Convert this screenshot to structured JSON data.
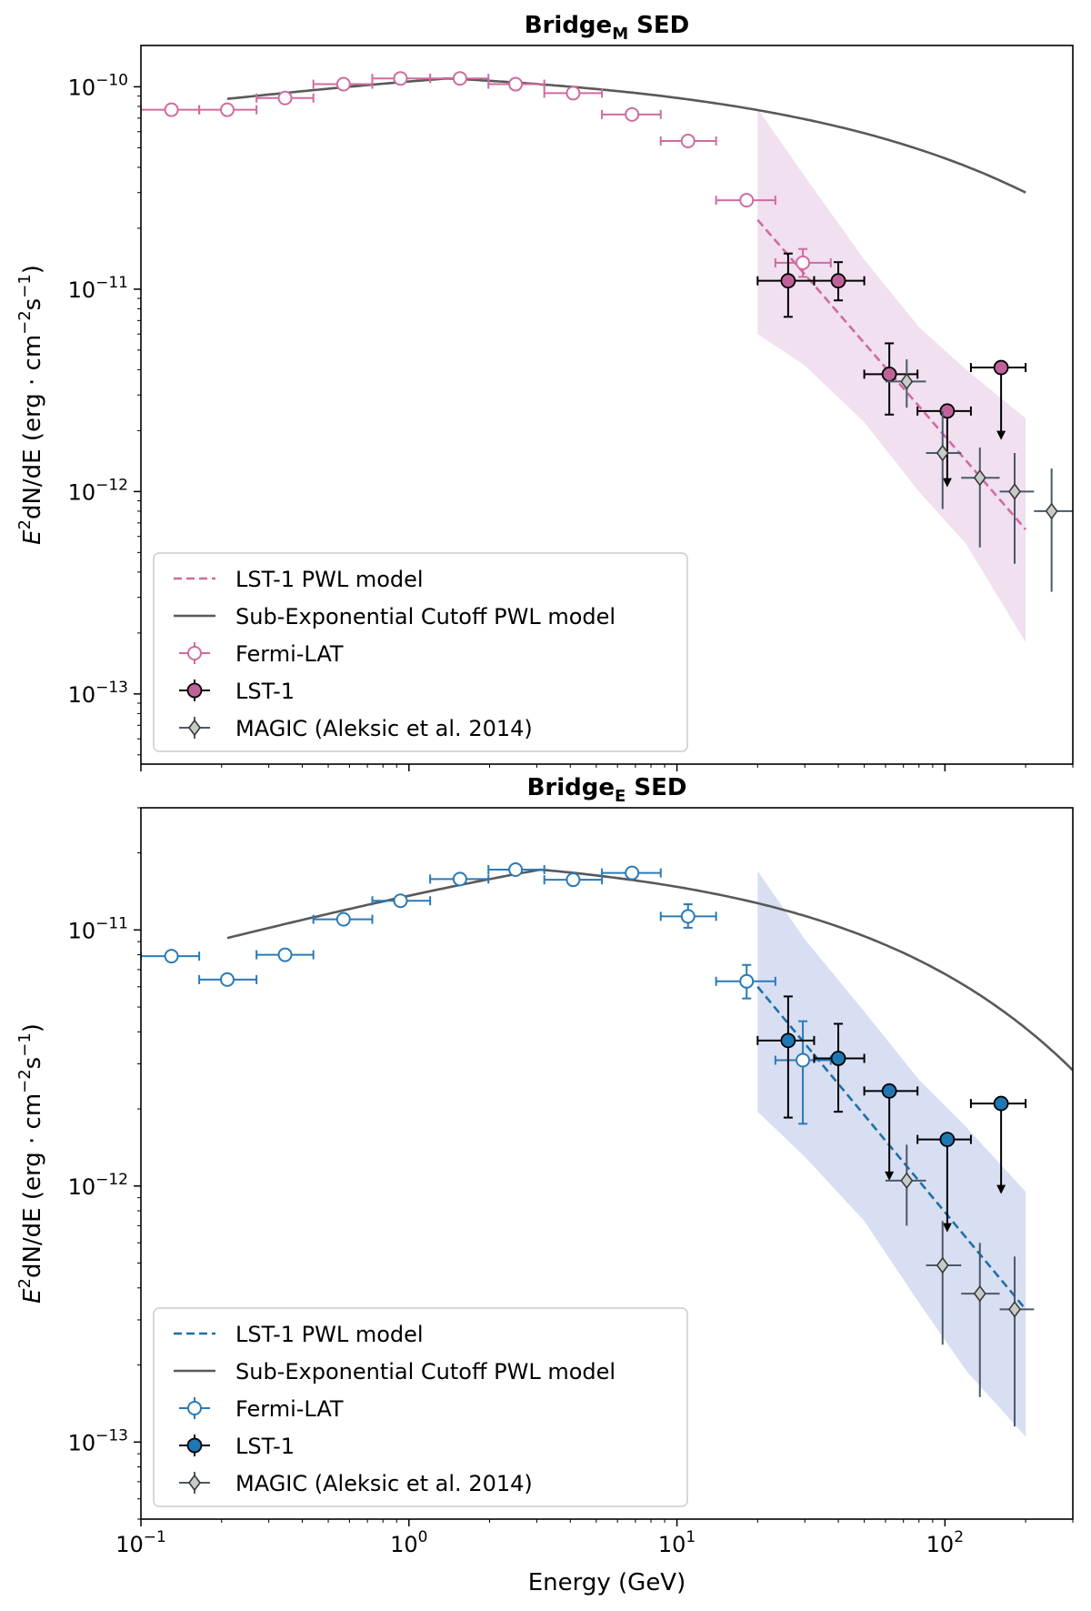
{
  "chart_data": [
    {
      "type": "scatter",
      "title": "Bridge",
      "title_sub": "M",
      "title_suffix": " SED",
      "xscale": "log",
      "yscale": "log",
      "xlim": [
        0.1,
        300
      ],
      "ylim": [
        4.5e-14,
        1.6e-10
      ],
      "xlabel": "",
      "ylabel_parts": [
        "E",
        "2",
        "dN/dE (erg · cm",
        "−2",
        "s",
        "−1",
        ")"
      ],
      "xticks": [
        0.1,
        1,
        10,
        100
      ],
      "x_tick_labels": [
        "",
        "",
        "",
        ""
      ],
      "yticks": [
        1e-13,
        1e-12,
        1e-11,
        1e-10
      ],
      "y_tick_labels": [
        {
          "base": "10",
          "exp": "−13"
        },
        {
          "base": "10",
          "exp": "−12"
        },
        {
          "base": "10",
          "exp": "−11"
        },
        {
          "base": "10",
          "exp": "−10"
        }
      ],
      "colors": {
        "fermi": "#d06b9f",
        "lst_fill": "#c0629a",
        "band": "#f0e0f0",
        "pwl": "#d06b9f",
        "model": "#595959",
        "magic": "#4a5a6a"
      },
      "pwl_band": {
        "x": [
          20,
          30,
          50,
          80,
          120,
          200
        ],
        "lower": [
          6e-12,
          4.2e-12,
          2.2e-12,
          1e-12,
          5.5e-13,
          1.8e-13
        ],
        "upper": [
          7.8e-11,
          3.6e-11,
          1.4e-11,
          6.5e-12,
          4e-12,
          2.3e-12
        ]
      },
      "pwl_line": {
        "x1": 20,
        "y1": 2.2e-11,
        "x2": 200,
        "y2": 6.5e-13
      },
      "model_curve": {
        "A": 1.1e-10,
        "x0": 1.4,
        "k": 0.0115,
        "b": 0.45,
        "xmin": 0.21,
        "xmax": 200
      },
      "series": [
        {
          "name": "Fermi-LAT",
          "kind": "fermi",
          "points": [
            {
              "x": 0.13,
              "xl": 0.1,
              "xh": 0.165,
              "y": 7.7e-11
            },
            {
              "x": 0.21,
              "xl": 0.165,
              "xh": 0.27,
              "y": 7.7e-11
            },
            {
              "x": 0.345,
              "xl": 0.27,
              "xh": 0.44,
              "y": 8.8e-11
            },
            {
              "x": 0.57,
              "xl": 0.44,
              "xh": 0.73,
              "y": 1.03e-10
            },
            {
              "x": 0.93,
              "xl": 0.73,
              "xh": 1.2,
              "y": 1.1e-10
            },
            {
              "x": 1.55,
              "xl": 1.2,
              "xh": 1.98,
              "y": 1.1e-10
            },
            {
              "x": 2.5,
              "xl": 1.98,
              "xh": 3.2,
              "y": 1.03e-10
            },
            {
              "x": 4.1,
              "xl": 3.2,
              "xh": 5.25,
              "y": 9.3e-11
            },
            {
              "x": 6.8,
              "xl": 5.25,
              "xh": 8.7,
              "y": 7.3e-11
            },
            {
              "x": 11.0,
              "xl": 8.7,
              "xh": 14.0,
              "y": 5.4e-11
            },
            {
              "x": 18.2,
              "xl": 14.0,
              "xh": 23.3,
              "y": 2.75e-11
            },
            {
              "x": 29.5,
              "xl": 23.3,
              "xh": 37.5,
              "y": 1.35e-11,
              "yl": 1.15e-11,
              "yh": 1.58e-11
            }
          ]
        },
        {
          "name": "LST-1",
          "kind": "lst",
          "points": [
            {
              "x": 26,
              "xl": 20,
              "xh": 32.5,
              "y": 1.1e-11,
              "yl": 7.3e-12,
              "yh": 1.5e-11
            },
            {
              "x": 40,
              "xl": 32.5,
              "xh": 50,
              "y": 1.1e-11,
              "yl": 8.8e-12,
              "yh": 1.36e-11
            },
            {
              "x": 62,
              "xl": 50,
              "xh": 79,
              "y": 3.8e-12,
              "yl": 2.4e-12,
              "yh": 5.4e-12
            },
            {
              "x": 102,
              "xl": 79,
              "xh": 125,
              "y": 2.5e-12,
              "ul": true,
              "arrow_to": 1.05e-12
            },
            {
              "x": 162,
              "xl": 125,
              "xh": 200,
              "y": 4.1e-12,
              "ul": true,
              "arrow_to": 1.8e-12
            }
          ]
        },
        {
          "name": "MAGIC (Aleksic et al. 2014)",
          "kind": "magic",
          "points": [
            {
              "x": 72,
              "xl": 60,
              "xh": 85,
              "y": 3.5e-12,
              "yl": 2.6e-12,
              "yh": 4.5e-12
            },
            {
              "x": 98,
              "xl": 85,
              "xh": 115,
              "y": 1.55e-12,
              "yl": 8.2e-13,
              "yh": 2.5e-12
            },
            {
              "x": 135,
              "xl": 115,
              "xh": 160,
              "y": 1.17e-12,
              "yl": 5.3e-13,
              "yh": 1.65e-12
            },
            {
              "x": 182,
              "xl": 160,
              "xh": 215,
              "y": 1e-12,
              "yl": 4.4e-13,
              "yh": 1.55e-12
            },
            {
              "x": 250,
              "xl": 215,
              "xh": 300,
              "y": 8e-13,
              "yl": 3.2e-13,
              "yh": 1.3e-12
            }
          ]
        }
      ],
      "legend": {
        "position": "lower-left",
        "entries": [
          "LST-1 PWL model",
          "Sub-Exponential Cutoff PWL model",
          "Fermi-LAT",
          "LST-1",
          "MAGIC (Aleksic et al. 2014)"
        ]
      }
    },
    {
      "type": "scatter",
      "title": "Bridge",
      "title_sub": "E",
      "title_suffix": " SED",
      "xscale": "log",
      "yscale": "log",
      "xlim": [
        0.1,
        300
      ],
      "ylim": [
        5e-14,
        3e-11
      ],
      "xlabel": "Energy (GeV)",
      "ylabel_parts": [
        "E",
        "2",
        "dN/dE (erg · cm",
        "−2",
        "s",
        "−1",
        ")"
      ],
      "xticks": [
        0.1,
        1,
        10,
        100
      ],
      "x_tick_labels": [
        {
          "base": "10",
          "exp": "−1"
        },
        {
          "base": "10",
          "exp": "0"
        },
        {
          "base": "10",
          "exp": "1"
        },
        {
          "base": "10",
          "exp": "2"
        }
      ],
      "yticks": [
        1e-13,
        1e-12,
        1e-11
      ],
      "y_tick_labels": [
        {
          "base": "10",
          "exp": "−13"
        },
        {
          "base": "10",
          "exp": "−12"
        },
        {
          "base": "10",
          "exp": "−11"
        }
      ],
      "colors": {
        "fermi": "#2a7ab8",
        "lst_fill": "#1f77b4",
        "band": "#d8dff2",
        "pwl": "#1f6fa8",
        "model": "#595959",
        "magic": "#4a5a6a"
      },
      "pwl_band": {
        "x": [
          20,
          30,
          50,
          80,
          120,
          200
        ],
        "lower": [
          1.95e-12,
          1.3e-12,
          7.3e-13,
          3.5e-13,
          1.9e-13,
          1.05e-13
        ],
        "upper": [
          1.7e-11,
          9.2e-12,
          4.8e-12,
          2.6e-12,
          1.7e-12,
          9.5e-13
        ]
      },
      "pwl_line": {
        "x1": 20,
        "y1": 6e-12,
        "x2": 200,
        "y2": 3.3e-13
      },
      "model_curve": {
        "A": 1.72e-11,
        "x0": 3.1,
        "k": 0.0125,
        "b": 0.52,
        "xmin": 0.21,
        "xmax": 300,
        "rise": true
      },
      "series": [
        {
          "name": "Fermi-LAT",
          "kind": "fermi",
          "points": [
            {
              "x": 0.13,
              "xl": 0.1,
              "xh": 0.165,
              "y": 7.9e-12
            },
            {
              "x": 0.21,
              "xl": 0.165,
              "xh": 0.27,
              "y": 6.4e-12
            },
            {
              "x": 0.345,
              "xl": 0.27,
              "xh": 0.44,
              "y": 8e-12
            },
            {
              "x": 0.57,
              "xl": 0.44,
              "xh": 0.73,
              "y": 1.1e-11
            },
            {
              "x": 0.93,
              "xl": 0.73,
              "xh": 1.2,
              "y": 1.3e-11
            },
            {
              "x": 1.55,
              "xl": 1.2,
              "xh": 1.98,
              "y": 1.58e-11
            },
            {
              "x": 2.5,
              "xl": 1.98,
              "xh": 3.2,
              "y": 1.72e-11
            },
            {
              "x": 4.1,
              "xl": 3.2,
              "xh": 5.25,
              "y": 1.57e-11
            },
            {
              "x": 6.8,
              "xl": 5.25,
              "xh": 8.7,
              "y": 1.67e-11
            },
            {
              "x": 11.0,
              "xl": 8.7,
              "xh": 14.0,
              "y": 1.13e-11,
              "yl": 1.02e-11,
              "yh": 1.26e-11
            },
            {
              "x": 18.2,
              "xl": 14.0,
              "xh": 23.3,
              "y": 6.3e-12,
              "yl": 5.4e-12,
              "yh": 7.3e-12
            },
            {
              "x": 29.5,
              "xl": 23.3,
              "xh": 37.5,
              "y": 3.1e-12,
              "yl": 1.75e-12,
              "yh": 4.4e-12
            }
          ]
        },
        {
          "name": "LST-1",
          "kind": "lst",
          "points": [
            {
              "x": 26,
              "xl": 20,
              "xh": 32.5,
              "y": 3.7e-12,
              "yl": 1.85e-12,
              "yh": 5.5e-12
            },
            {
              "x": 40,
              "xl": 32.5,
              "xh": 50,
              "y": 3.15e-12,
              "yl": 1.95e-12,
              "yh": 4.3e-12
            },
            {
              "x": 62,
              "xl": 50,
              "xh": 79,
              "y": 2.35e-12,
              "ul": true,
              "arrow_to": 1.05e-12
            },
            {
              "x": 102,
              "xl": 79,
              "xh": 125,
              "y": 1.52e-12,
              "ul": true,
              "arrow_to": 6.6e-13
            },
            {
              "x": 162,
              "xl": 125,
              "xh": 200,
              "y": 2.1e-12,
              "ul": true,
              "arrow_to": 9.3e-13
            }
          ]
        },
        {
          "name": "MAGIC (Aleksic et al. 2014)",
          "kind": "magic",
          "points": [
            {
              "x": 72,
              "xl": 60,
              "xh": 85,
              "y": 1.05e-12,
              "yl": 7e-13,
              "yh": 1.45e-12
            },
            {
              "x": 98,
              "xl": 85,
              "xh": 115,
              "y": 4.9e-13,
              "yl": 2.4e-13,
              "yh": 7.3e-13
            },
            {
              "x": 135,
              "xl": 115,
              "xh": 160,
              "y": 3.8e-13,
              "yl": 1.5e-13,
              "yh": 6e-13
            },
            {
              "x": 182,
              "xl": 160,
              "xh": 215,
              "y": 3.3e-13,
              "yl": 1.15e-13,
              "yh": 5.3e-13
            }
          ]
        }
      ],
      "legend": {
        "position": "lower-left",
        "entries": [
          "LST-1 PWL model",
          "Sub-Exponential Cutoff PWL model",
          "Fermi-LAT",
          "LST-1",
          "MAGIC (Aleksic et al. 2014)"
        ]
      }
    }
  ]
}
